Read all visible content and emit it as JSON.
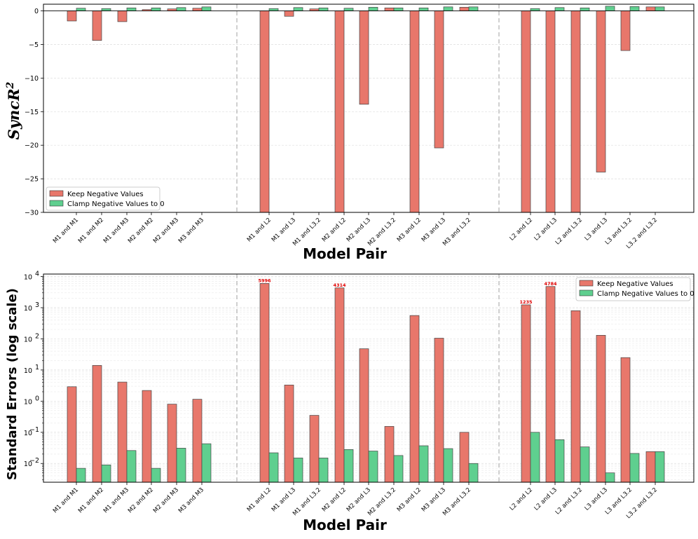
{
  "chart_data": [
    {
      "type": "bar",
      "title": "",
      "xlabel": "Model Pair",
      "ylabel": "SyncR",
      "ylabel_superscript": "2",
      "ylim": [
        -30,
        1
      ],
      "yticks": [
        0,
        -5,
        -10,
        -15,
        -20,
        -25,
        -30
      ],
      "grid": true,
      "legend_position": "lower-left",
      "group_separators_after": [
        5,
        14
      ],
      "categories": [
        "M1 and M1",
        "M1 and M2",
        "M1 and M3",
        "M2 and M2",
        "M2 and M3",
        "M3 and M3",
        "M1 and L2",
        "M1 and L3",
        "M1 and L3.2",
        "M2 and L2",
        "M2 and L3",
        "M2 and L3.2",
        "M3 and L2",
        "M3 and L3",
        "M3 and L3.2",
        "L2 and L2",
        "L2 and L3",
        "L2 and L3.2",
        "L3 and L3",
        "L3 and L3.2",
        "L3.2 and L3.2"
      ],
      "series": [
        {
          "name": "Keep Negative Values",
          "color": "#e8776b",
          "values": [
            -1.5,
            -4.4,
            -1.6,
            0.2,
            0.3,
            0.4,
            -30,
            -0.8,
            0.3,
            -30,
            -13.9,
            0.45,
            -30,
            -20.4,
            0.55,
            -30,
            -30,
            -30,
            -24.0,
            -5.9,
            0.6
          ]
        },
        {
          "name": "Clamp Negative Values to 0",
          "color": "#5fcf8f",
          "values": [
            0.4,
            0.35,
            0.45,
            0.45,
            0.5,
            0.6,
            0.35,
            0.5,
            0.45,
            0.4,
            0.55,
            0.45,
            0.45,
            0.6,
            0.6,
            0.35,
            0.5,
            0.45,
            0.7,
            0.65,
            0.6
          ]
        }
      ]
    },
    {
      "type": "bar",
      "title": "",
      "xlabel": "Model Pair",
      "ylabel": "Standard Errors (log scale)",
      "yscale": "log",
      "ylim": [
        0.0025,
        12000
      ],
      "ytick_labels": [
        "10",
        "10",
        "10",
        "10",
        "10",
        "10",
        "10"
      ],
      "ytick_exponents": [
        "-2",
        "-1",
        "0",
        "1",
        "2",
        "3",
        "4"
      ],
      "grid": true,
      "legend_position": "top-right",
      "group_separators_after": [
        5,
        14
      ],
      "categories": [
        "M1 and M1",
        "M1 and M2",
        "M1 and M3",
        "M2 and M2",
        "M2 and M3",
        "M3 and M3",
        "M1 and L2",
        "M1 and L3",
        "M1 and L3.2",
        "M2 and L2",
        "M2 and L3",
        "M2 and L3.2",
        "M3 and L2",
        "M3 and L3",
        "M3 and L3.2",
        "L2 and L2",
        "L2 and L3",
        "L2 and L3.2",
        "L3 and L3",
        "L3 and L3.2",
        "L3.2 and L3.2"
      ],
      "series": [
        {
          "name": "Keep Negative Values",
          "color": "#e8776b",
          "values": [
            2.9,
            14,
            4.1,
            2.2,
            0.8,
            1.15,
            5996,
            3.3,
            0.35,
            4314,
            48,
            0.155,
            560,
            105,
            0.1,
            1235,
            4784,
            800,
            130,
            25,
            0.024
          ]
        },
        {
          "name": "Clamp Negative Values to 0",
          "color": "#5fcf8f",
          "values": [
            0.007,
            0.009,
            0.026,
            0.007,
            0.031,
            0.043,
            0.022,
            0.015,
            0.015,
            0.028,
            0.025,
            0.018,
            0.037,
            0.03,
            0.01,
            0.1,
            0.058,
            0.034,
            0.005,
            0.021,
            0.024
          ]
        }
      ],
      "annotations": [
        {
          "category": "M1 and L2",
          "text": "5996"
        },
        {
          "category": "M2 and L2",
          "text": "4314"
        },
        {
          "category": "L2 and L2",
          "text": "1235"
        },
        {
          "category": "L2 and L3",
          "text": "4784"
        }
      ],
      "annotation_color": "#e00000"
    }
  ]
}
